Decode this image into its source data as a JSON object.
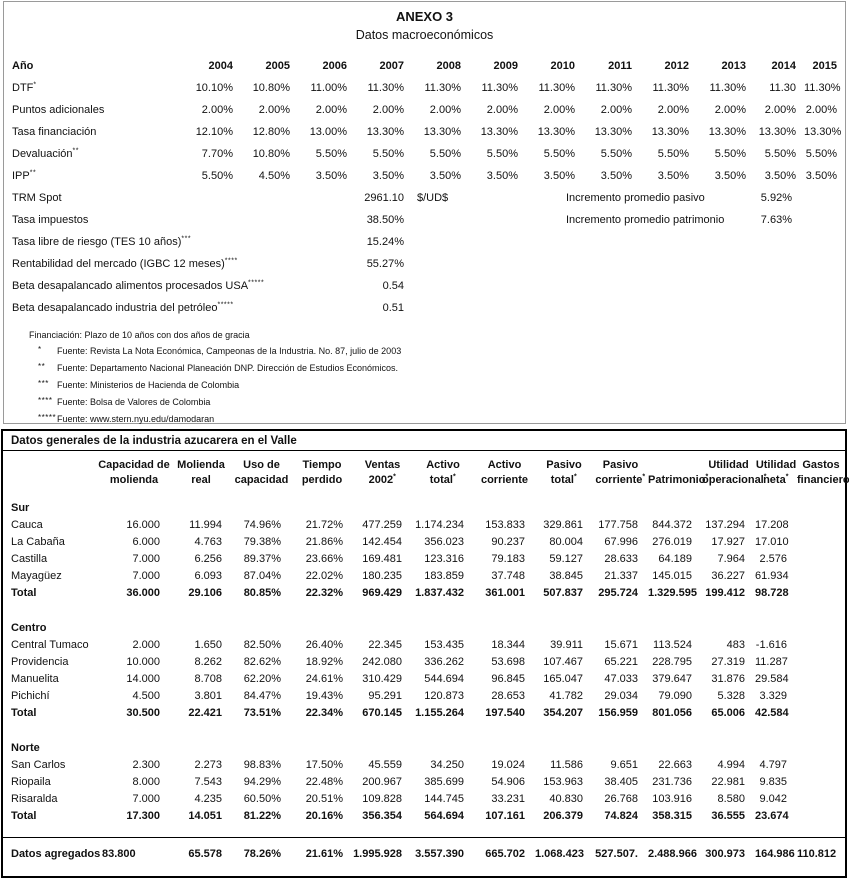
{
  "anexo": {
    "title": "ANEXO 3",
    "subtitle": "Datos macroeconómicos",
    "year_header_label": "Año",
    "years": [
      "2004",
      "2005",
      "2006",
      "2007",
      "2008",
      "2009",
      "2010",
      "2011",
      "2012",
      "2013",
      "2014",
      "2015"
    ],
    "rows": [
      {
        "label": "DTF",
        "sup": "*",
        "values": [
          "10.10%",
          "10.80%",
          "11.00%",
          "11.30%",
          "11.30%",
          "11.30%",
          "11.30%",
          "11.30%",
          "11.30%",
          "11.30%",
          "11.30",
          "11.30%"
        ]
      },
      {
        "label": "Puntos adicionales",
        "sup": "",
        "values": [
          "2.00%",
          "2.00%",
          "2.00%",
          "2.00%",
          "2.00%",
          "2.00%",
          "2.00%",
          "2.00%",
          "2.00%",
          "2.00%",
          "2.00%",
          "2.00%"
        ]
      },
      {
        "label": "Tasa financiación",
        "sup": "",
        "values": [
          "12.10%",
          "12.80%",
          "13.00%",
          "13.30%",
          "13.30%",
          "13.30%",
          "13.30%",
          "13.30%",
          "13.30%",
          "13.30%",
          "13.30%",
          "13.30%"
        ]
      },
      {
        "label": "Devaluación",
        "sup": "**",
        "values": [
          "7.70%",
          "10.80%",
          "5.50%",
          "5.50%",
          "5.50%",
          "5.50%",
          "5.50%",
          "5.50%",
          "5.50%",
          "5.50%",
          "5.50%",
          "5.50%"
        ]
      },
      {
        "label": "IPP",
        "sup": "**",
        "values": [
          "5.50%",
          "4.50%",
          "3.50%",
          "3.50%",
          "3.50%",
          "3.50%",
          "3.50%",
          "3.50%",
          "3.50%",
          "3.50%",
          "3.50%",
          "3.50%"
        ]
      }
    ],
    "single_rows": [
      {
        "label": "TRM Spot",
        "sup": "",
        "value": "2961.10",
        "unit": "$/UD$",
        "note_label": "Incremento promedio pasivo",
        "note_value": "5.92%"
      },
      {
        "label": "Tasa impuestos",
        "sup": "",
        "value": "38.50%",
        "unit": "",
        "note_label": "Incremento promedio patrimonio",
        "note_value": "7.63%"
      },
      {
        "label": "Tasa libre de riesgo (TES 10 años)",
        "sup": "***",
        "value": "15.24%",
        "unit": "",
        "note_label": "",
        "note_value": ""
      },
      {
        "label": "Rentabilidad del mercado (IGBC 12 meses)",
        "sup": "****",
        "value": "55.27%",
        "unit": "",
        "note_label": "",
        "note_value": ""
      },
      {
        "label": "Beta desapalancado alimentos procesados USA",
        "sup": "*****",
        "value": "0.54",
        "unit": "",
        "note_label": "",
        "note_value": ""
      },
      {
        "label": "Beta desapalancado industria del petróleo",
        "sup": "*****",
        "value": "0.51",
        "unit": "",
        "note_label": "",
        "note_value": ""
      }
    ],
    "footnotes": [
      {
        "marker": "",
        "text": "Financiación: Plazo de 10 años con dos años de gracia"
      },
      {
        "marker": "*",
        "text": "Fuente: Revista La Nota Económica, Campeonas de la Industria. No. 87, julio de 2003"
      },
      {
        "marker": "**",
        "text": "Fuente: Departamento Nacional Planeación DNP. Dirección de Estudios Económicos."
      },
      {
        "marker": "***",
        "text": "Fuente: Ministerios de Hacienda de Colombia"
      },
      {
        "marker": "****",
        "text": "Fuente: Bolsa de Valores de Colombia"
      },
      {
        "marker": "*****",
        "text": "Fuente: www.stern.nyu.edu/damodaran"
      }
    ]
  },
  "industria": {
    "title": "Datos generales de la industria azucarera en el Valle",
    "columns": [
      {
        "line1": "Capacidad de",
        "line2": "molienda",
        "sup": ""
      },
      {
        "line1": "Molienda",
        "line2": "real",
        "sup": ""
      },
      {
        "line1": "Uso de",
        "line2": "capacidad",
        "sup": ""
      },
      {
        "line1": "Tiempo",
        "line2": "perdido",
        "sup": ""
      },
      {
        "line1": "Ventas",
        "line2": "2002",
        "sup": "*"
      },
      {
        "line1": "Activo",
        "line2": "total",
        "sup": "*"
      },
      {
        "line1": "Activo",
        "line2": "corriente",
        "sup": ""
      },
      {
        "line1": "Pasivo",
        "line2": "total",
        "sup": "*"
      },
      {
        "line1": "Pasivo",
        "line2": "corriente",
        "sup": "*"
      },
      {
        "line1": "",
        "line2": "Patrimonio",
        "sup": "*"
      },
      {
        "line1": "Utilidad",
        "line2": "operacional",
        "sup": "*"
      },
      {
        "line1": "Utilidad",
        "line2": "neta",
        "sup": "*"
      },
      {
        "line1": "Gastos",
        "line2": "financieros",
        "sup": "*"
      }
    ],
    "sections": [
      {
        "name": "Sur",
        "rows": [
          {
            "label": "Cauca",
            "values": [
              "16.000",
              "11.994",
              "74.96%",
              "21.72%",
              "477.259",
              "1.174.234",
              "153.833",
              "329.861",
              "177.758",
              "844.372",
              "137.294",
              "17.208",
              ""
            ]
          },
          {
            "label": "La Cabaña",
            "values": [
              "6.000",
              "4.763",
              "79.38%",
              "21.86%",
              "142.454",
              "356.023",
              "90.237",
              "80.004",
              "67.996",
              "276.019",
              "17.927",
              "17.010",
              ""
            ]
          },
          {
            "label": "Castilla",
            "values": [
              "7.000",
              "6.256",
              "89.37%",
              "23.66%",
              "169.481",
              "123.316",
              "79.183",
              "59.127",
              "28.633",
              "64.189",
              "7.964",
              "2.576",
              ""
            ]
          },
          {
            "label": "Mayagüez",
            "values": [
              "7.000",
              "6.093",
              "87.04%",
              "22.02%",
              "180.235",
              "183.859",
              "37.748",
              "38.845",
              "21.337",
              "145.015",
              "36.227",
              "61.934",
              ""
            ]
          }
        ],
        "total": {
          "label": "Total",
          "values": [
            "36.000",
            "29.106",
            "80.85%",
            "22.32%",
            "969.429",
            "1.837.432",
            "361.001",
            "507.837",
            "295.724",
            "1.329.595",
            "199.412",
            "98.728",
            ""
          ]
        }
      },
      {
        "name": "Centro",
        "rows": [
          {
            "label": "Central Tumaco",
            "values": [
              "2.000",
              "1.650",
              "82.50%",
              "26.40%",
              "22.345",
              "153.435",
              "18.344",
              "39.911",
              "15.671",
              "113.524",
              "483",
              "-1.616",
              ""
            ]
          },
          {
            "label": "Providencia",
            "values": [
              "10.000",
              "8.262",
              "82.62%",
              "18.92%",
              "242.080",
              "336.262",
              "53.698",
              "107.467",
              "65.221",
              "228.795",
              "27.319",
              "11.287",
              ""
            ]
          },
          {
            "label": "Manuelita",
            "values": [
              "14.000",
              "8.708",
              "62.20%",
              "24.61%",
              "310.429",
              "544.694",
              "96.845",
              "165.047",
              "47.033",
              "379.647",
              "31.876",
              "29.584",
              ""
            ]
          },
          {
            "label": "Pichichí",
            "values": [
              "4.500",
              "3.801",
              "84.47%",
              "19.43%",
              "95.291",
              "120.873",
              "28.653",
              "41.782",
              "29.034",
              "79.090",
              "5.328",
              "3.329",
              ""
            ]
          }
        ],
        "total": {
          "label": "Total",
          "values": [
            "30.500",
            "22.421",
            "73.51%",
            "22.34%",
            "670.145",
            "1.155.264",
            "197.540",
            "354.207",
            "156.959",
            "801.056",
            "65.006",
            "42.584",
            ""
          ]
        }
      },
      {
        "name": "Norte",
        "rows": [
          {
            "label": "San Carlos",
            "values": [
              "2.300",
              "2.273",
              "98.83%",
              "17.50%",
              "45.559",
              "34.250",
              "19.024",
              "11.586",
              "9.651",
              "22.663",
              "4.994",
              "4.797",
              ""
            ]
          },
          {
            "label": "Riopaila",
            "values": [
              "8.000",
              "7.543",
              "94.29%",
              "22.48%",
              "200.967",
              "385.699",
              "54.906",
              "153.963",
              "38.405",
              "231.736",
              "22.981",
              "9.835",
              ""
            ]
          },
          {
            "label": "Risaralda",
            "values": [
              "7.000",
              "4.235",
              "60.50%",
              "20.51%",
              "109.828",
              "144.745",
              "33.231",
              "40.830",
              "26.768",
              "103.916",
              "8.580",
              "9.042",
              ""
            ]
          }
        ],
        "total": {
          "label": "Total",
          "values": [
            "17.300",
            "14.051",
            "81.22%",
            "20.16%",
            "356.354",
            "564.694",
            "107.161",
            "206.379",
            "74.824",
            "358.315",
            "36.555",
            "23.674",
            ""
          ]
        }
      }
    ],
    "aggregate": {
      "label": "Datos agregados",
      "values": [
        "83.800",
        "65.578",
        "78.26%",
        "21.61%",
        "1.995.928",
        "3.557.390",
        "665.702",
        "1.068.423",
        "527.507.",
        "2.488.966",
        "300.973",
        "164.986",
        "110.812"
      ]
    }
  }
}
